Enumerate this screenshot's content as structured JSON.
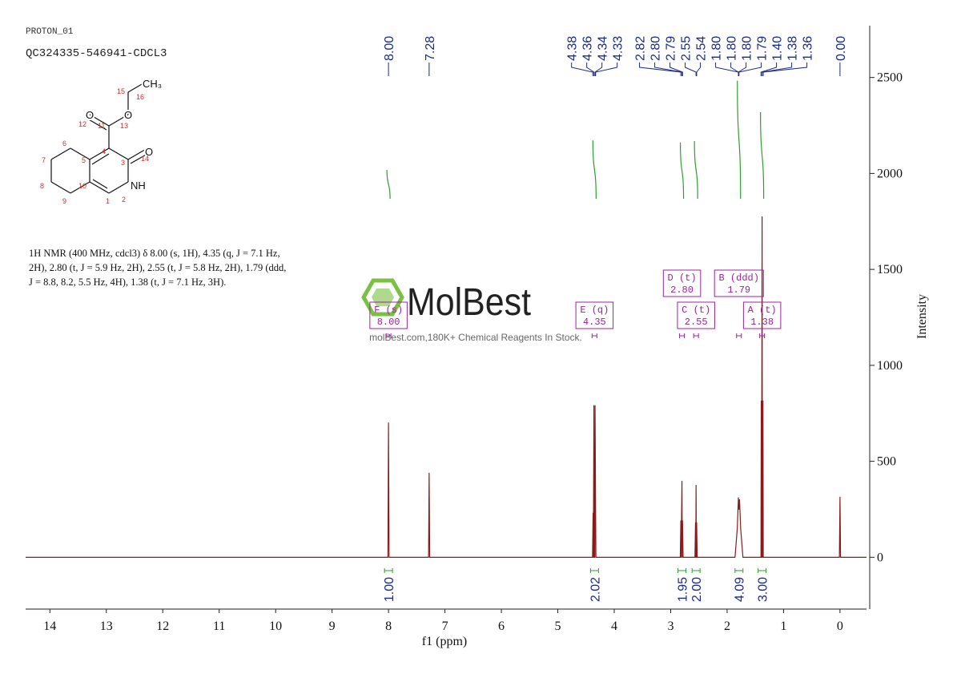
{
  "header": {
    "experiment": "PROTON_01",
    "sample": "QC324335-546941-CDCL3"
  },
  "structure": {
    "atoms": [
      "O",
      "O",
      "O",
      "NH",
      "CH₃"
    ],
    "numbers": [
      "1",
      "2",
      "3",
      "4",
      "5",
      "6",
      "7",
      "8",
      "9",
      "10",
      "11",
      "12",
      "13",
      "14",
      "15",
      "16"
    ]
  },
  "description": [
    "1H NMR (400 MHz, cdcl3) δ 8.00 (s, 1H), 4.35 (q, J = 7.1 Hz,",
    "2H), 2.80 (t, J = 5.9 Hz, 2H), 2.55 (t, J = 5.8 Hz, 2H), 1.79 (ddd,",
    "J = 8.8, 8.2, 5.5 Hz, 4H), 1.38 (t, J = 7.1 Hz, 3H)."
  ],
  "watermark": {
    "brand": "MolBest",
    "tagline": "molBest.com,180K+ Chemical Reagents In Stock."
  },
  "chart_data": {
    "type": "line",
    "x_label": "f1 (ppm)",
    "y_label": "Intensity",
    "xlim": [
      14.43,
      -0.47
    ],
    "ylim": [
      -270,
      2770
    ],
    "xticks": [
      14,
      13,
      12,
      11,
      10,
      9,
      8,
      7,
      6,
      5,
      4,
      3,
      2,
      1,
      0
    ],
    "yticks": [
      0,
      500,
      1000,
      1500,
      2000,
      2500
    ],
    "series": [
      {
        "color": "#8b1a1a",
        "x": [
          14.43,
          8.01,
          8.0,
          7.99,
          7.29,
          7.28,
          7.27,
          4.385,
          4.375,
          4.37,
          4.36,
          4.355,
          4.345,
          4.34,
          4.33,
          4.325,
          2.83,
          2.82,
          2.815,
          2.8,
          2.795,
          2.79,
          2.78,
          2.57,
          2.56,
          2.555,
          2.55,
          2.545,
          2.54,
          2.53,
          1.86,
          1.82,
          1.8,
          1.79,
          1.78,
          1.76,
          1.72,
          1.4,
          1.395,
          1.39,
          1.38,
          1.375,
          1.365,
          1.36,
          0.01,
          0.0,
          -0.01,
          -0.47
        ],
        "values": [
          0,
          0,
          700,
          0,
          0,
          438,
          0,
          0,
          230,
          0,
          790,
          0,
          0,
          790,
          230,
          0,
          0,
          190,
          0,
          396,
          0,
          190,
          0,
          0,
          180,
          0,
          375,
          0,
          180,
          0,
          0,
          150,
          310,
          250,
          300,
          150,
          0,
          0,
          814,
          0,
          1774,
          0,
          814,
          0,
          0,
          313,
          0,
          0
        ]
      }
    ],
    "peak_labels": [
      {
        "value": 8.0,
        "label": "8.00"
      },
      {
        "value": 7.28,
        "label": "7.28"
      },
      {
        "value": 4.38,
        "label": "4.38"
      },
      {
        "value": 4.36,
        "label": "4.36"
      },
      {
        "value": 4.34,
        "label": "4.34"
      },
      {
        "value": 4.33,
        "label": "4.33"
      },
      {
        "value": 2.82,
        "label": "2.82"
      },
      {
        "value": 2.8,
        "label": "2.80"
      },
      {
        "value": 2.79,
        "label": "2.79"
      },
      {
        "value": 2.55,
        "label": "2.55"
      },
      {
        "value": 2.54,
        "label": "2.54"
      },
      {
        "value": 1.8,
        "label": "1.80"
      },
      {
        "value": 1.8,
        "label": "1.80"
      },
      {
        "value": 1.8,
        "label": "1.80"
      },
      {
        "value": 1.79,
        "label": "1.79"
      },
      {
        "value": 1.4,
        "label": "1.40"
      },
      {
        "value": 1.38,
        "label": "1.38"
      },
      {
        "value": 1.36,
        "label": "1.36"
      },
      {
        "value": 0.0,
        "label": "0.00"
      }
    ],
    "integrals": [
      {
        "x": 8.0,
        "value": 1.0,
        "label": "1.00"
      },
      {
        "x": 4.35,
        "value": 2.02,
        "label": "2.02"
      },
      {
        "x": 2.8,
        "value": 1.95,
        "label": "1.95"
      },
      {
        "x": 2.55,
        "value": 2.0,
        "label": "2.00"
      },
      {
        "x": 1.79,
        "value": 4.09,
        "label": "4.09"
      },
      {
        "x": 1.38,
        "value": 3.0,
        "label": "3.00"
      }
    ],
    "multiplets": [
      {
        "x": 8.0,
        "name": "F (s)",
        "shift": "8.00"
      },
      {
        "x": 4.35,
        "name": "E (q)",
        "shift": "4.35"
      },
      {
        "x": 2.8,
        "name": "D (t)",
        "shift": "2.80"
      },
      {
        "x": 2.55,
        "name": "C (t)",
        "shift": "2.55"
      },
      {
        "x": 1.79,
        "name": "B (ddd)",
        "shift": "1.79"
      },
      {
        "x": 1.38,
        "name": "A (t)",
        "shift": "1.38"
      }
    ]
  }
}
